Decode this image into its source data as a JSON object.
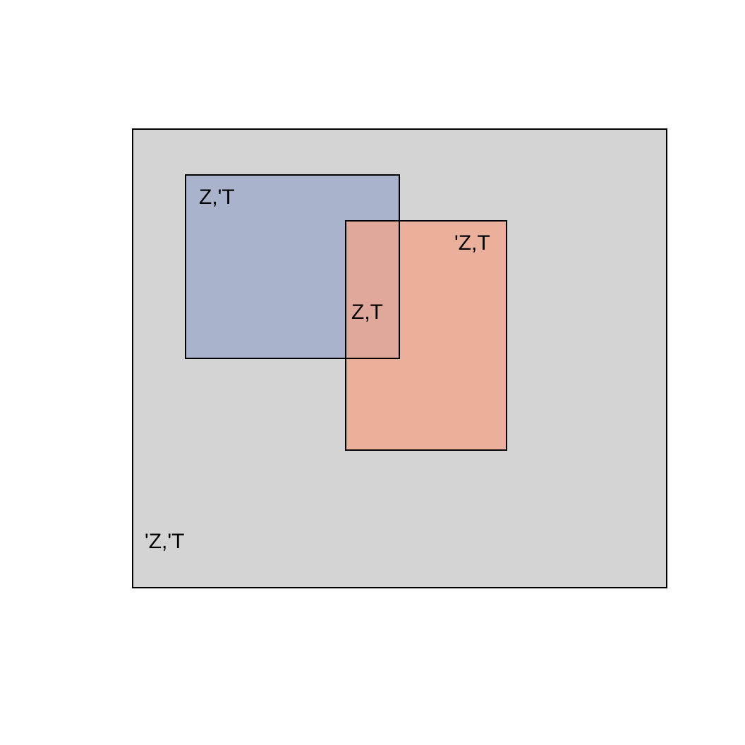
{
  "diagram": {
    "colors": {
      "universe_fill": "#d4d4d4",
      "set_z_fill": "#aab3cc",
      "set_t_fill": "#f2a48a",
      "overlap_tint": "#d09890",
      "stroke": "#000000"
    },
    "regions": {
      "universe": "'Z,'T",
      "z_only": "Z,'T",
      "t_only": "'Z,T",
      "z_and_t": "Z,T"
    }
  }
}
